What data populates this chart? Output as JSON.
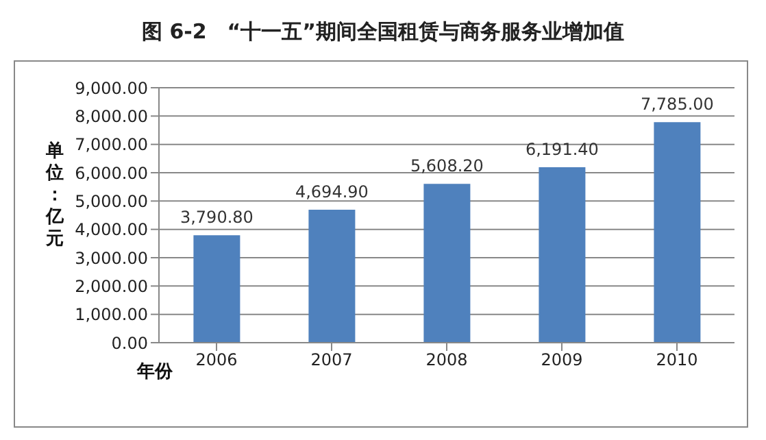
{
  "chart_data": {
    "type": "bar",
    "title": "图 6-2　“十一五”期间全国租赁与商务服务业增加值",
    "xlabel": "年份",
    "ylabel": "单位：亿元",
    "categories": [
      "2006",
      "2007",
      "2008",
      "2009",
      "2010"
    ],
    "values": [
      3790.8,
      4694.9,
      5608.2,
      6191.4,
      7785.0
    ],
    "value_labels": [
      "3,790.80",
      "4,694.90",
      "5,608.20",
      "6,191.40",
      "7,785.00"
    ],
    "color": "#4f81bd",
    "ylim": [
      0,
      9000
    ],
    "yticks": [
      {
        "value": 0,
        "label": "0.00"
      },
      {
        "value": 1000,
        "label": "1,000.00"
      },
      {
        "value": 2000,
        "label": "2,000.00"
      },
      {
        "value": 3000,
        "label": "3,000.00"
      },
      {
        "value": 4000,
        "label": "4,000.00"
      },
      {
        "value": 5000,
        "label": "5,000.00"
      },
      {
        "value": 6000,
        "label": "6,000.00"
      },
      {
        "value": 7000,
        "label": "7,000.00"
      },
      {
        "value": 8000,
        "label": "8,000.00"
      },
      {
        "value": 9000,
        "label": "9,000.00"
      }
    ],
    "grid": "y"
  }
}
